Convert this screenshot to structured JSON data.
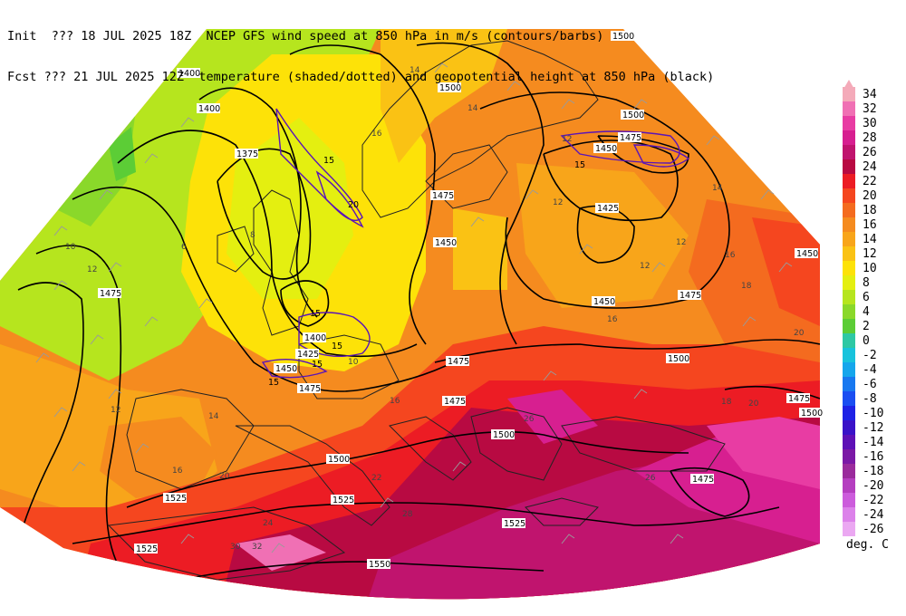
{
  "header": {
    "init_line": "Init  ??? 18 JUL 2025 18Z  NCEP GFS wind speed at 850 hPa in m/s (contours/barbs)",
    "fcst_line": "Fcst ??? 21 JUL 2025 12Z  temperature (shaded/dotted) and geopotential height at 850 hPa (black)"
  },
  "colorbar": {
    "unit": "deg. C",
    "levels": [
      {
        "label": "34",
        "color": "#f4aab9"
      },
      {
        "label": "32",
        "color": "#f070b4"
      },
      {
        "label": "30",
        "color": "#e83ca3"
      },
      {
        "label": "28",
        "color": "#d71f90"
      },
      {
        "label": "26",
        "color": "#c0146e"
      },
      {
        "label": "24",
        "color": "#b80a42"
      },
      {
        "label": "22",
        "color": "#ec1c24"
      },
      {
        "label": "20",
        "color": "#f5461f"
      },
      {
        "label": "18",
        "color": "#f46b1f"
      },
      {
        "label": "16",
        "color": "#f58b1f"
      },
      {
        "label": "14",
        "color": "#f8a51a"
      },
      {
        "label": "12",
        "color": "#fac214"
      },
      {
        "label": "10",
        "color": "#fde208"
      },
      {
        "label": "8",
        "color": "#e4ef10"
      },
      {
        "label": "6",
        "color": "#b6e51e"
      },
      {
        "label": "4",
        "color": "#8ad82a"
      },
      {
        "label": "2",
        "color": "#5ccd36"
      },
      {
        "label": "0",
        "color": "#2ec8a4"
      },
      {
        "label": "-2",
        "color": "#18c3dc"
      },
      {
        "label": "-4",
        "color": "#15a6ec"
      },
      {
        "label": "-6",
        "color": "#1878f0"
      },
      {
        "label": "-8",
        "color": "#1a4ef2"
      },
      {
        "label": "-10",
        "color": "#1e22e6"
      },
      {
        "label": "-12",
        "color": "#3a12c8"
      },
      {
        "label": "-14",
        "color": "#5e10b6"
      },
      {
        "label": "-16",
        "color": "#7b19a6"
      },
      {
        "label": "-18",
        "color": "#9a2b9c"
      },
      {
        "label": "-20",
        "color": "#b53fc0"
      },
      {
        "label": "-22",
        "color": "#cc5cdc"
      },
      {
        "label": "-24",
        "color": "#dc82ea"
      },
      {
        "label": "-26",
        "color": "#eba8f2"
      }
    ]
  },
  "height_labels": [
    "1500",
    "1400",
    "1400",
    "1375",
    "1500",
    "1500",
    "1475",
    "1450",
    "1425",
    "1450",
    "1475",
    "1450",
    "1500",
    "1475",
    "1450",
    "1475",
    "1475",
    "1425",
    "1400",
    "1450",
    "1475",
    "1475",
    "1500",
    "1500",
    "1525",
    "1525",
    "1525",
    "1525",
    "1550",
    "1475",
    "1475",
    "1500"
  ],
  "wind_labels": [
    "15",
    "20",
    "15",
    "15",
    "15",
    "15",
    "15"
  ],
  "temp_labels": [
    "14",
    "16",
    "14",
    "12",
    "12",
    "12",
    "12",
    "14",
    "16",
    "16",
    "18",
    "20",
    "8",
    "10",
    "12",
    "6",
    "10",
    "12",
    "14",
    "16",
    "16",
    "20",
    "22",
    "24",
    "26",
    "28",
    "30",
    "32",
    "26",
    "20",
    "18"
  ]
}
